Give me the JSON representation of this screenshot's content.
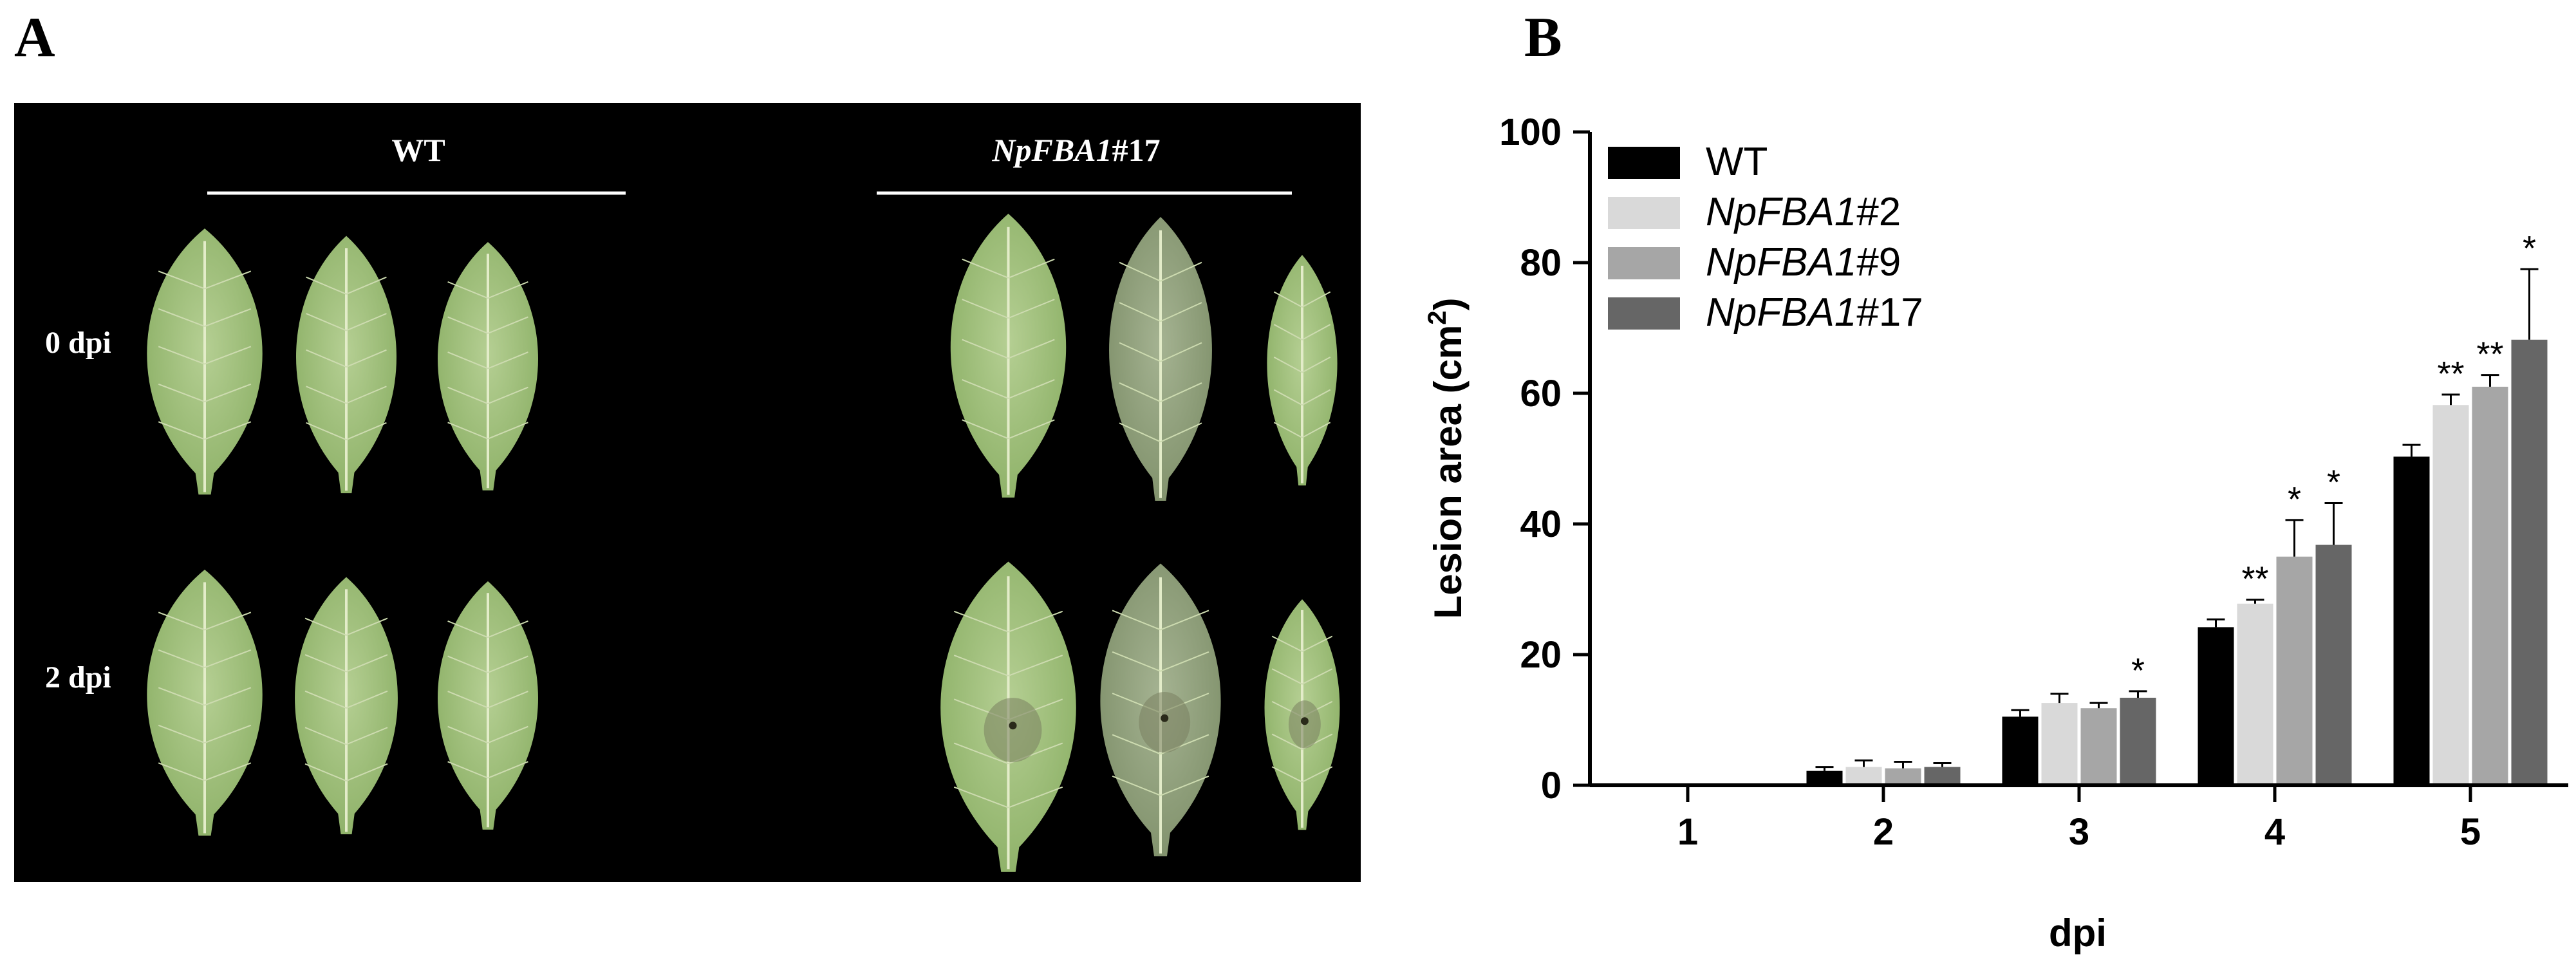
{
  "panel_a": {
    "letter": "A",
    "group_wt": "WT",
    "group_mutant_gene": "NpFBA1",
    "group_mutant_line": "#17",
    "row_0": "0 dpi",
    "row_2": "2 dpi",
    "leaf_color": "#9fbf78",
    "background_color": "#000000"
  },
  "panel_b": {
    "letter": "B"
  },
  "chart_data": {
    "type": "bar",
    "categories": [
      "1",
      "2",
      "3",
      "4",
      "5"
    ],
    "xlabel": "dpi",
    "ylabel": "Lesion area (cm",
    "ylabel_sup": "2",
    "ylabel_end": ")",
    "ylim": [
      0,
      100
    ],
    "yticks": [
      "0",
      "20",
      "40",
      "60",
      "80",
      "100"
    ],
    "grid": false,
    "legend_position": "top-left",
    "series": [
      {
        "name": "WT",
        "name_italic": "",
        "name_suffix": "",
        "color": "#000000",
        "values": [
          0,
          2.2,
          10.5,
          24.2,
          50.3
        ],
        "errors": [
          0,
          0.6,
          1.0,
          1.2,
          1.8
        ],
        "sig": [
          "",
          "",
          "",
          "",
          ""
        ]
      },
      {
        "name": "NpFBA1#2",
        "name_italic": "NpFBA1",
        "name_suffix": "#2",
        "color": "#d9d9d9",
        "values": [
          0,
          2.8,
          12.6,
          27.8,
          58.2
        ],
        "errors": [
          0,
          1.0,
          1.4,
          0.6,
          1.6
        ],
        "sig": [
          "",
          "",
          "",
          "**",
          "**"
        ]
      },
      {
        "name": "NpFBA1#9",
        "name_italic": "NpFBA1",
        "name_suffix": "#9",
        "color": "#a6a6a6",
        "values": [
          0,
          2.6,
          11.8,
          35.0,
          61.0
        ],
        "errors": [
          0,
          1.0,
          0.8,
          5.6,
          1.8
        ],
        "sig": [
          "",
          "",
          "",
          "*",
          "**"
        ]
      },
      {
        "name": "NpFBA1#17",
        "name_italic": "NpFBA1",
        "name_suffix": "#17",
        "color": "#666666",
        "values": [
          0,
          2.8,
          13.4,
          36.8,
          68.2
        ],
        "errors": [
          0,
          0.6,
          1.0,
          6.4,
          10.8
        ],
        "sig": [
          "",
          "",
          "*",
          "*",
          "*"
        ]
      }
    ]
  }
}
